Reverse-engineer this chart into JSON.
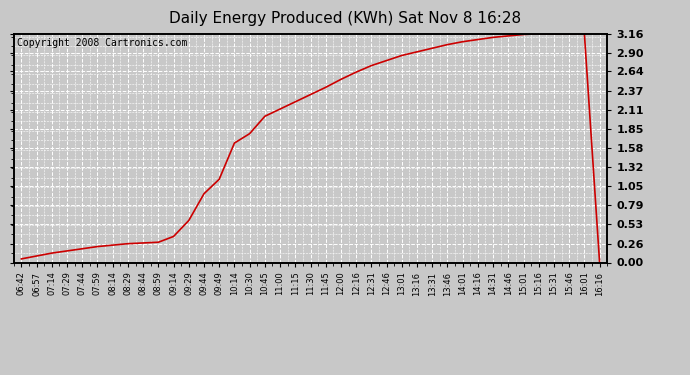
{
  "title": "Daily Energy Produced (KWh) Sat Nov 8 16:28",
  "copyright": "Copyright 2008 Cartronics.com",
  "line_color": "#cc0000",
  "background_color": "#c8c8c8",
  "plot_bg_color": "#c8c8c8",
  "grid_color": "#ffffff",
  "yticks": [
    0.0,
    0.26,
    0.53,
    0.79,
    1.05,
    1.32,
    1.58,
    1.85,
    2.11,
    2.37,
    2.64,
    2.9,
    3.16
  ],
  "ylim": [
    0.0,
    3.16
  ],
  "xtick_labels": [
    "06:42",
    "06:57",
    "07:14",
    "07:29",
    "07:44",
    "07:59",
    "08:14",
    "08:29",
    "08:44",
    "08:59",
    "09:14",
    "09:29",
    "09:44",
    "09:49",
    "10:14",
    "10:30",
    "10:45",
    "11:00",
    "11:15",
    "11:30",
    "11:45",
    "12:00",
    "12:16",
    "12:31",
    "12:46",
    "13:01",
    "13:16",
    "13:31",
    "13:46",
    "14:01",
    "14:16",
    "14:31",
    "14:46",
    "15:01",
    "15:16",
    "15:31",
    "15:46",
    "16:01",
    "16:16"
  ],
  "x_indices": [
    0,
    1,
    2,
    3,
    4,
    5,
    6,
    7,
    8,
    9,
    10,
    11,
    12,
    13,
    14,
    15,
    16,
    17,
    18,
    19,
    20,
    21,
    22,
    23,
    24,
    25,
    26,
    27,
    28,
    29,
    30,
    31,
    32,
    33,
    34,
    35,
    36,
    37,
    38
  ],
  "y_data": [
    0.05,
    0.09,
    0.13,
    0.16,
    0.19,
    0.22,
    0.24,
    0.26,
    0.27,
    0.28,
    0.36,
    0.58,
    0.95,
    1.15,
    1.65,
    1.78,
    2.02,
    2.12,
    2.22,
    2.32,
    2.42,
    2.53,
    2.63,
    2.72,
    2.79,
    2.86,
    2.91,
    2.96,
    3.01,
    3.05,
    3.08,
    3.11,
    3.13,
    3.15,
    3.16,
    3.16,
    3.16,
    3.16,
    0.0
  ],
  "title_fontsize": 11,
  "copyright_fontsize": 7,
  "ytick_fontsize": 8,
  "xtick_fontsize": 6
}
